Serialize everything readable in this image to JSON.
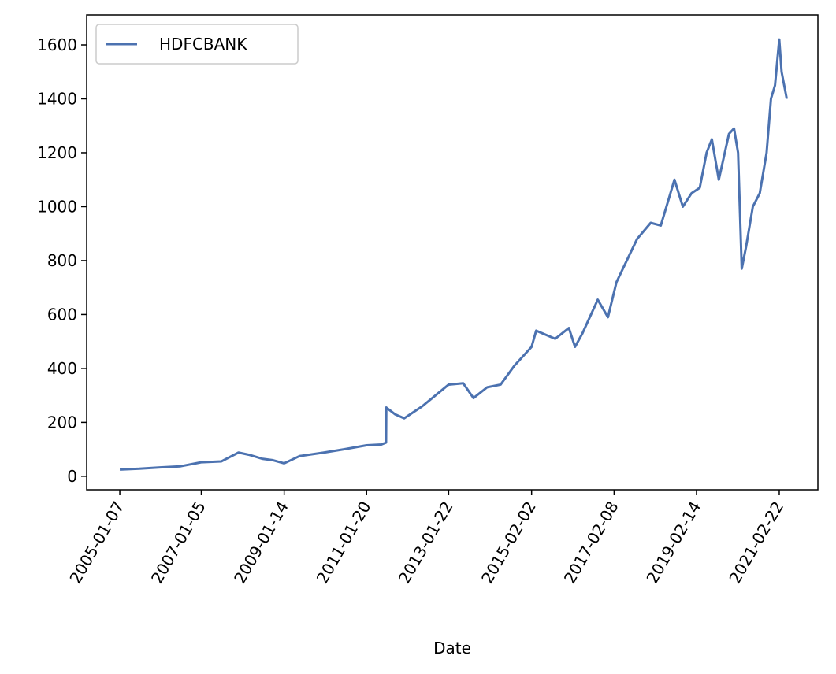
{
  "chart_data": {
    "type": "line",
    "x_label": "Date",
    "x": [
      "2005-01-07",
      "2005-07-01",
      "2006-01-02",
      "2006-07-03",
      "2007-01-05",
      "2007-07-02",
      "2007-12-03",
      "2008-03-03",
      "2008-07-01",
      "2008-10-01",
      "2009-01-14",
      "2009-06-01",
      "2010-01-04",
      "2010-07-01",
      "2011-01-20",
      "2011-06-01",
      "2011-07-13",
      "2011-07-15",
      "2011-10-01",
      "2011-12-22",
      "2012-06-01",
      "2013-01-22",
      "2013-06-01",
      "2013-09-01",
      "2014-01-01",
      "2014-05-01",
      "2014-09-01",
      "2015-02-02",
      "2015-03-15",
      "2015-09-01",
      "2016-01-01",
      "2016-02-25",
      "2016-05-01",
      "2016-09-15",
      "2016-12-15",
      "2017-03-01",
      "2017-06-01",
      "2017-09-01",
      "2018-01-01",
      "2018-04-01",
      "2018-08-01",
      "2018-10-15",
      "2019-01-01",
      "2019-03-15",
      "2019-05-15",
      "2019-07-01",
      "2019-09-01",
      "2019-12-01",
      "2020-01-15",
      "2020-02-20",
      "2020-03-24",
      "2020-05-01",
      "2020-07-01",
      "2020-09-01",
      "2020-11-01",
      "2020-12-10",
      "2021-01-15",
      "2021-02-22",
      "2021-03-15",
      "2021-04-30"
    ],
    "series": [
      {
        "name": "HDFCBANK",
        "color": "#4c72b0",
        "values": [
          25,
          28,
          33,
          37,
          52,
          55,
          88,
          80,
          65,
          60,
          48,
          75,
          88,
          100,
          115,
          118,
          125,
          255,
          230,
          215,
          260,
          340,
          345,
          290,
          330,
          340,
          410,
          480,
          540,
          510,
          550,
          480,
          530,
          655,
          590,
          720,
          800,
          880,
          940,
          930,
          1100,
          1000,
          1050,
          1070,
          1200,
          1250,
          1100,
          1270,
          1290,
          1200,
          770,
          850,
          1000,
          1050,
          1200,
          1400,
          1450,
          1620,
          1500,
          1400
        ]
      }
    ],
    "xlim": [
      "2004-03-17",
      "2022-02-02"
    ],
    "xticks": [
      "2005-01-07",
      "2007-01-05",
      "2009-01-14",
      "2011-01-20",
      "2013-01-22",
      "2015-02-02",
      "2017-02-08",
      "2019-02-14",
      "2021-02-22"
    ],
    "ylim": [
      -50,
      1711
    ],
    "yticks": [
      0,
      200,
      400,
      600,
      800,
      1000,
      1200,
      1400,
      1600
    ],
    "legend": "upper-left"
  }
}
